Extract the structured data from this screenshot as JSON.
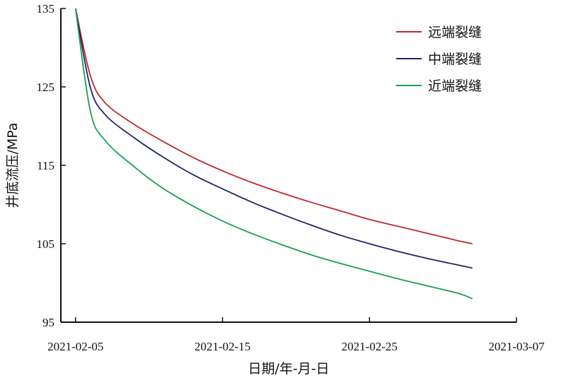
{
  "chart_data": {
    "type": "line",
    "xlabel": "日期/年-月-日",
    "ylabel": "井底流压/MPa",
    "x_axis": {
      "type": "date",
      "range": [
        "2021-02-04",
        "2021-03-07"
      ],
      "ticks": [
        "2021-02-05",
        "2021-02-15",
        "2021-02-25",
        "2021-03-07"
      ]
    },
    "y_axis": {
      "range": [
        95,
        135
      ],
      "ticks": [
        95,
        105,
        115,
        125,
        135
      ]
    },
    "grid": false,
    "legend_position": "top-right",
    "series": [
      {
        "name": "远端裂缝",
        "color": "#c0282d",
        "points": [
          [
            "2021-02-05",
            135.0
          ],
          [
            "2021-02-06",
            126.5
          ],
          [
            "2021-02-07",
            123.0
          ],
          [
            "2021-02-09",
            120.2
          ],
          [
            "2021-02-11",
            118.0
          ],
          [
            "2021-02-13",
            116.0
          ],
          [
            "2021-02-15",
            114.3
          ],
          [
            "2021-02-17",
            112.8
          ],
          [
            "2021-02-19",
            111.5
          ],
          [
            "2021-02-21",
            110.3
          ],
          [
            "2021-02-23",
            109.2
          ],
          [
            "2021-02-25",
            108.1
          ],
          [
            "2021-02-27",
            107.2
          ],
          [
            "2021-03-01",
            106.3
          ],
          [
            "2021-03-03",
            105.4
          ],
          [
            "2021-03-04",
            105.0
          ]
        ]
      },
      {
        "name": "中端裂缝",
        "color": "#1f2469",
        "points": [
          [
            "2021-02-05",
            135.0
          ],
          [
            "2021-02-06",
            125.0
          ],
          [
            "2021-02-07",
            121.5
          ],
          [
            "2021-02-09",
            118.5
          ],
          [
            "2021-02-11",
            116.0
          ],
          [
            "2021-02-13",
            113.8
          ],
          [
            "2021-02-15",
            112.0
          ],
          [
            "2021-02-17",
            110.3
          ],
          [
            "2021-02-19",
            108.8
          ],
          [
            "2021-02-21",
            107.4
          ],
          [
            "2021-02-23",
            106.1
          ],
          [
            "2021-02-25",
            105.0
          ],
          [
            "2021-02-27",
            104.0
          ],
          [
            "2021-03-01",
            103.1
          ],
          [
            "2021-03-03",
            102.3
          ],
          [
            "2021-03-04",
            101.9
          ]
        ]
      },
      {
        "name": "近端裂缝",
        "color": "#17a155",
        "points": [
          [
            "2021-02-05",
            135.0
          ],
          [
            "2021-02-06",
            122.0
          ],
          [
            "2021-02-07",
            118.2
          ],
          [
            "2021-02-09",
            114.8
          ],
          [
            "2021-02-11",
            112.0
          ],
          [
            "2021-02-13",
            109.8
          ],
          [
            "2021-02-15",
            107.9
          ],
          [
            "2021-02-17",
            106.3
          ],
          [
            "2021-02-19",
            104.9
          ],
          [
            "2021-02-21",
            103.6
          ],
          [
            "2021-02-23",
            102.5
          ],
          [
            "2021-02-25",
            101.5
          ],
          [
            "2021-02-27",
            100.5
          ],
          [
            "2021-03-01",
            99.6
          ],
          [
            "2021-03-03",
            98.7
          ],
          [
            "2021-03-04",
            98.0
          ]
        ]
      }
    ]
  }
}
